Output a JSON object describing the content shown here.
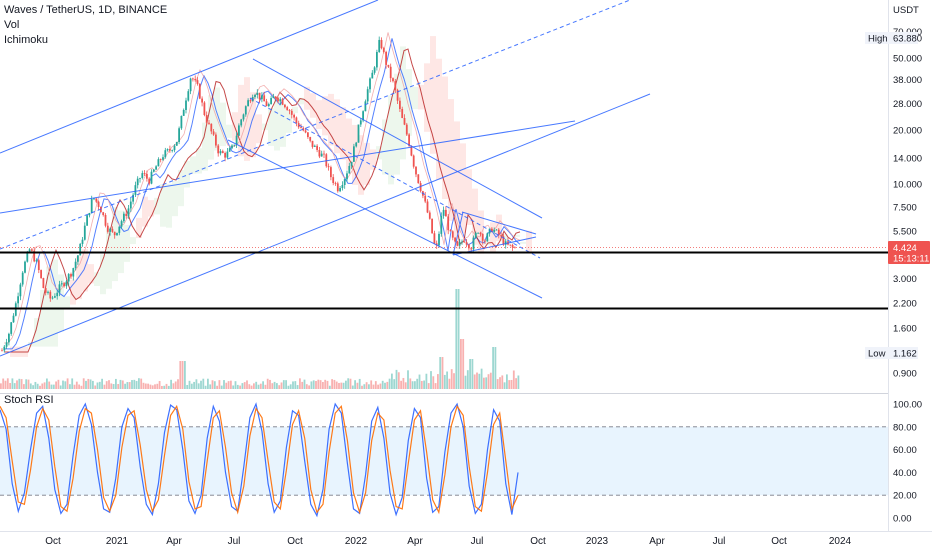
{
  "chart_data": [
    {
      "type": "candlestick",
      "title": "Waves / TetherUS, 1D, BINANCE",
      "indicators": [
        "Vol",
        "Ichimoku"
      ],
      "scale": "log",
      "yaxis_ticks": [
        "70.000",
        "50.000",
        "38.000",
        "28.000",
        "20.000",
        "14.000",
        "10.000",
        "7.500",
        "5.500",
        "3.000",
        "2.200",
        "1.600",
        "0.900"
      ],
      "ytick_values": [
        70,
        50,
        38,
        28,
        20,
        14,
        10,
        7.5,
        5.5,
        3,
        2.2,
        1.6,
        0.9
      ],
      "xaxis_ticks": [
        "Oct",
        "2021",
        "Apr",
        "Jul",
        "Oct",
        "2022",
        "Apr",
        "Jul",
        "Oct",
        "2023",
        "Apr",
        "Jul",
        "Oct",
        "2024"
      ],
      "ylabel": "USDT",
      "high_label": "High",
      "high_value": "63.880",
      "low_label": "Low",
      "low_value": "1.162",
      "last_price": "4.424",
      "countdown": "15:13:11",
      "horizontal_levels": [
        4.1,
        2.1
      ],
      "price_path": [
        [
          0,
          1.2
        ],
        [
          1,
          1.5
        ],
        [
          2,
          2.2
        ],
        [
          3,
          3.4
        ],
        [
          4,
          4.4
        ],
        [
          5,
          3.6
        ],
        [
          6,
          2.6
        ],
        [
          7,
          2.3
        ],
        [
          8,
          2.6
        ],
        [
          9,
          2.9
        ],
        [
          10,
          3.3
        ],
        [
          11,
          4.2
        ],
        [
          12,
          6.2
        ],
        [
          13,
          8.5
        ],
        [
          14,
          7.5
        ],
        [
          15,
          5.8
        ],
        [
          16,
          5.2
        ],
        [
          17,
          6.2
        ],
        [
          18,
          7.2
        ],
        [
          19,
          9.5
        ],
        [
          20,
          11.5
        ],
        [
          21,
          10.5
        ],
        [
          22,
          12.5
        ],
        [
          23,
          14.5
        ],
        [
          24,
          15.5
        ],
        [
          25,
          17.5
        ],
        [
          26,
          27
        ],
        [
          27,
          40
        ],
        [
          28,
          34
        ],
        [
          29,
          24
        ],
        [
          30,
          19
        ],
        [
          31,
          15
        ],
        [
          32,
          14.5
        ],
        [
          33,
          16
        ],
        [
          34,
          22
        ],
        [
          35,
          28
        ],
        [
          36,
          33
        ],
        [
          37,
          30
        ],
        [
          38,
          27
        ],
        [
          39,
          31
        ],
        [
          40,
          29
        ],
        [
          41,
          26
        ],
        [
          42,
          22
        ],
        [
          43,
          20
        ],
        [
          44,
          17
        ],
        [
          45,
          15.5
        ],
        [
          46,
          14
        ],
        [
          47,
          11
        ],
        [
          48,
          9.5
        ],
        [
          49,
          11
        ],
        [
          50,
          14
        ],
        [
          51,
          21
        ],
        [
          52,
          31
        ],
        [
          53,
          42
        ],
        [
          54,
          63
        ],
        [
          55,
          45
        ],
        [
          56,
          35
        ],
        [
          57,
          24
        ],
        [
          58,
          18
        ],
        [
          59,
          12
        ],
        [
          60,
          9
        ],
        [
          61,
          6.5
        ],
        [
          62,
          4.2
        ],
        [
          63,
          7.5
        ],
        [
          64,
          5.3
        ],
        [
          65,
          4.4
        ],
        [
          66,
          5.0
        ],
        [
          67,
          4.5
        ],
        [
          68,
          5.6
        ],
        [
          69,
          4.9
        ],
        [
          70,
          5.7
        ],
        [
          71,
          5.2
        ],
        [
          72,
          4.6
        ],
        [
          73,
          4.42
        ]
      ]
    },
    {
      "type": "line",
      "title": "Stoch RSI",
      "yaxis_ticks": [
        "100.00",
        "80.00",
        "60.00",
        "40.00",
        "20.00",
        "0.00"
      ],
      "ytick_values": [
        100,
        80,
        60,
        40,
        20,
        0
      ],
      "band": [
        20,
        80
      ],
      "series": [
        {
          "values": [
            95,
            78,
            30,
            6,
            22,
            60,
            92,
            98,
            70,
            25,
            4,
            12,
            55,
            90,
            100,
            82,
            40,
            8,
            5,
            35,
            80,
            96,
            88,
            45,
            12,
            3,
            30,
            75,
            99,
            95,
            60,
            15,
            4,
            20,
            70,
            98,
            85,
            40,
            10,
            6,
            45,
            88,
            100,
            76,
            30,
            5,
            15,
            62,
            94,
            90,
            50,
            12,
            2,
            25,
            78,
            100,
            92,
            48,
            8,
            4,
            38,
            85,
            97,
            70,
            22,
            3,
            18,
            68,
            96,
            88,
            35,
            5,
            10,
            58,
            92,
            100,
            80,
            28,
            4,
            12,
            60,
            95,
            85,
            30,
            3,
            40
          ]
        },
        {
          "values": [
            98,
            88,
            50,
            14,
            12,
            42,
            80,
            96,
            86,
            45,
            10,
            6,
            35,
            76,
            96,
            92,
            60,
            18,
            6,
            20,
            62,
            90,
            94,
            64,
            25,
            6,
            16,
            55,
            90,
            98,
            78,
            32,
            8,
            10,
            50,
            88,
            94,
            62,
            22,
            5,
            28,
            72,
            96,
            88,
            50,
            14,
            8,
            42,
            82,
            94,
            70,
            25,
            5,
            12,
            58,
            92,
            98,
            68,
            22,
            5,
            22,
            68,
            92,
            86,
            42,
            10,
            8,
            48,
            86,
            94,
            58,
            16,
            5,
            38,
            80,
            98,
            90,
            45,
            10,
            6,
            40,
            82,
            92,
            50,
            8,
            20
          ]
        }
      ]
    }
  ]
}
